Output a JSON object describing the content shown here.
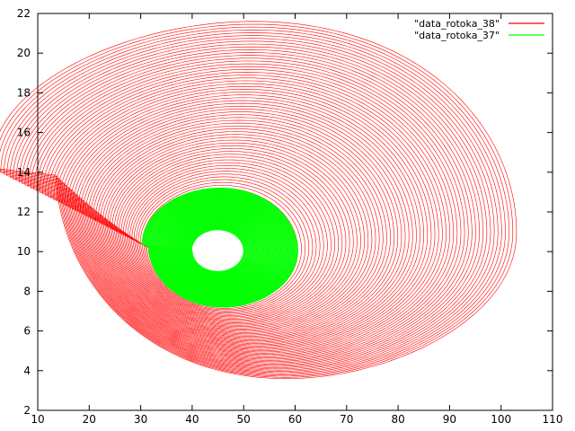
{
  "chart_data": {
    "type": "line",
    "title": "",
    "xlabel": "",
    "ylabel": "",
    "xlim": [
      10,
      110
    ],
    "ylim": [
      2,
      22
    ],
    "xticks": [
      10,
      20,
      30,
      40,
      50,
      60,
      70,
      80,
      90,
      100,
      110
    ],
    "yticks": [
      2,
      4,
      6,
      8,
      10,
      12,
      14,
      16,
      18,
      20,
      22
    ],
    "grid": false,
    "legend_position": "top-right",
    "series": [
      {
        "name": "\"data_rotoka_38\"",
        "color": "#ff0000",
        "shape": "closed spiral orbit",
        "outer_orbit_extent": {
          "x_min": 13.5,
          "x_max": 103,
          "y_min": 3.6,
          "y_max": 21.6
        },
        "inner_orbit_extent": {
          "x_min": 31.5,
          "x_max": 60.5,
          "y_min": 7.2,
          "y_max": 13.2
        },
        "start_point": [
          13.2,
          10.2
        ]
      },
      {
        "name": "\"data_rotoka_37\"",
        "color": "#00ff00",
        "shape": "closed spiral orbit",
        "outer_orbit_extent": {
          "x_min": 31.5,
          "x_max": 60.5,
          "y_min": 7.2,
          "y_max": 13.2
        },
        "inner_orbit_extent": {
          "x_min": 40,
          "x_max": 50,
          "y_min": 9,
          "y_max": 11.1
        }
      }
    ]
  }
}
